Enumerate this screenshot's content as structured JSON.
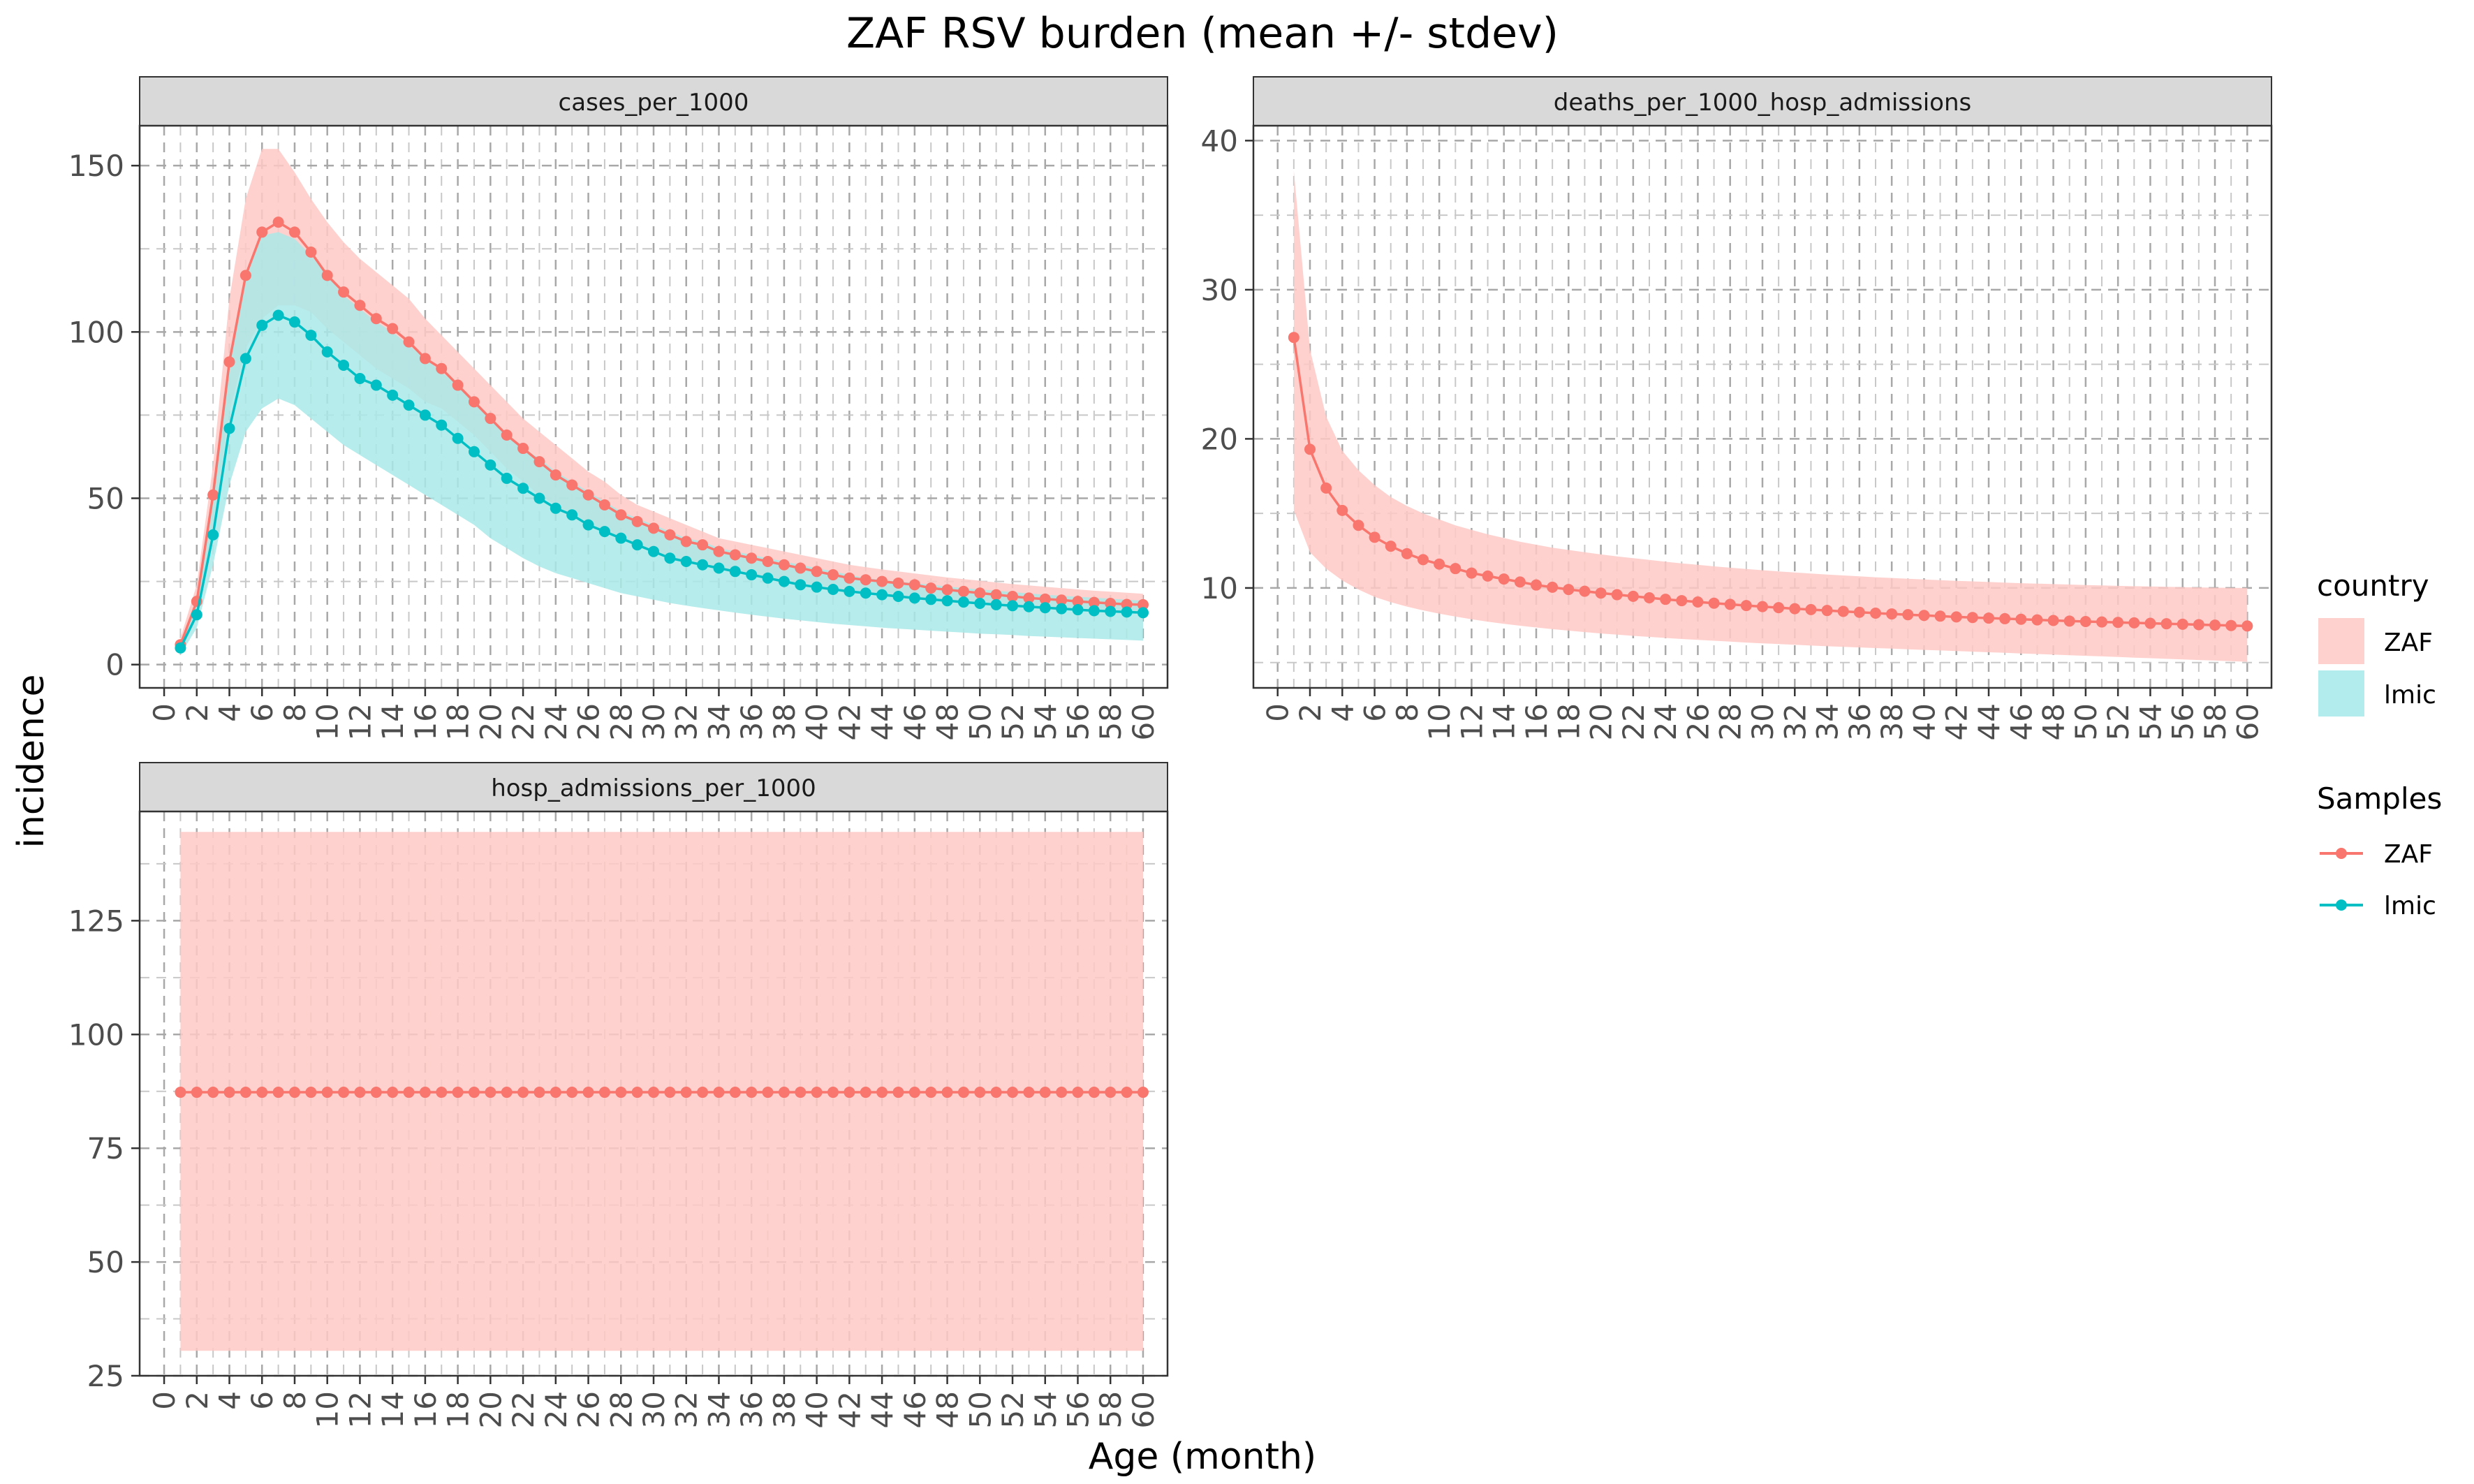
{
  "title": "ZAF RSV burden (mean +/- stdev)",
  "xlabel": "Age (month)",
  "ylabel": "incidence",
  "legend": {
    "fill_title": "country",
    "line_title": "Samples",
    "items": [
      {
        "label": "ZAF",
        "color": "#F8766D",
        "fill": "#FFD1CE"
      },
      {
        "label": "lmic",
        "color": "#00BFC4",
        "fill": "#B3ECEC"
      }
    ]
  },
  "colors": {
    "zaf": "#F8766D",
    "lmic": "#00BFC4",
    "zaf_band": "#FFC9C5",
    "lmic_band": "#A9E9E8",
    "strip": "#D9D9D9"
  },
  "chart_data": [
    {
      "type": "line",
      "panel": "cases_per_1000",
      "x_ticks": [
        0,
        2,
        4,
        6,
        8,
        10,
        12,
        14,
        16,
        18,
        20,
        22,
        24,
        26,
        28,
        30,
        32,
        34,
        36,
        38,
        40,
        42,
        44,
        46,
        48,
        50,
        52,
        54,
        56,
        58,
        60
      ],
      "xlim": [
        -1.5,
        61.5
      ],
      "ylim": [
        -7,
        162
      ],
      "y_ticks": [
        0,
        50,
        100,
        150
      ],
      "grid": true,
      "x": [
        1,
        2,
        3,
        4,
        5,
        6,
        7,
        8,
        9,
        10,
        11,
        12,
        13,
        14,
        15,
        16,
        17,
        18,
        19,
        20,
        21,
        22,
        23,
        24,
        25,
        26,
        27,
        28,
        29,
        30,
        31,
        32,
        33,
        34,
        35,
        36,
        37,
        38,
        39,
        40,
        41,
        42,
        43,
        44,
        45,
        46,
        47,
        48,
        49,
        50,
        51,
        52,
        53,
        54,
        55,
        56,
        57,
        58,
        59,
        60
      ],
      "series": [
        {
          "name": "ZAF",
          "values": [
            6,
            19,
            51,
            91,
            117,
            130,
            133,
            130,
            124,
            117,
            112,
            108,
            104,
            101,
            97,
            92,
            89,
            84,
            79,
            74,
            69,
            65,
            61,
            57,
            54,
            51,
            48,
            45,
            43,
            41,
            39,
            37,
            36,
            34,
            33,
            32,
            31,
            30,
            29,
            28,
            27,
            26,
            25.5,
            25,
            24.5,
            24,
            23,
            22.5,
            22,
            21.5,
            21,
            20.5,
            20,
            19.7,
            19.4,
            19,
            18.7,
            18.4,
            18.1,
            18
          ],
          "upper": [
            8,
            24,
            60,
            110,
            140,
            155,
            155,
            148,
            140,
            133,
            127,
            122,
            118,
            114,
            110,
            104,
            99,
            94,
            89,
            84,
            79,
            74,
            70,
            66,
            62,
            58,
            55,
            51,
            48,
            46,
            44,
            42,
            40,
            38,
            37,
            36,
            35,
            34,
            33,
            32,
            31,
            30,
            29.3,
            28.6,
            28,
            27.4,
            26.8,
            26.2,
            25.7,
            25.2,
            24.7,
            24.2,
            23.8,
            23.4,
            23,
            22.6,
            22.2,
            21.9,
            21.6,
            21.3
          ],
          "lower": [
            4,
            14,
            42,
            76,
            95,
            104,
            108,
            108,
            106,
            101,
            97,
            93,
            89,
            86,
            83,
            79,
            77,
            73,
            69,
            64,
            59,
            55,
            51,
            48,
            45,
            43,
            40,
            38,
            36,
            34,
            32,
            31,
            30,
            29,
            28,
            27,
            26,
            25,
            24.5,
            24,
            23,
            22.5,
            22,
            21.4,
            20.9,
            20.4,
            19.9,
            19.5,
            19,
            18.6,
            18.2,
            17.8,
            17.4,
            17.1,
            16.8,
            16.5,
            16.2,
            15.9,
            15.6,
            15.3
          ]
        },
        {
          "name": "lmic",
          "values": [
            5,
            15,
            39,
            71,
            92,
            102,
            105,
            103,
            99,
            94,
            90,
            86,
            84,
            81,
            78,
            75,
            72,
            68,
            64,
            60,
            56,
            53,
            50,
            47,
            45,
            42,
            40,
            38,
            36,
            34,
            32,
            31,
            30,
            29,
            28,
            27,
            26,
            25,
            24,
            23.3,
            22.6,
            22,
            21.5,
            21,
            20.5,
            20,
            19.6,
            19.2,
            18.8,
            18.4,
            18,
            17.7,
            17.4,
            17.1,
            16.8,
            16.5,
            16.2,
            16,
            15.8,
            15.6
          ],
          "upper": [
            7,
            19,
            49,
            90,
            116,
            129,
            130,
            128,
            123,
            117,
            111,
            107,
            103,
            100,
            96,
            92,
            88,
            84,
            79,
            74,
            69,
            65,
            62,
            58,
            55,
            52,
            49,
            46,
            44,
            42,
            40,
            38,
            37,
            35,
            34,
            33,
            32,
            31,
            30,
            29,
            28,
            27,
            26,
            25.5,
            25,
            24.5,
            24,
            23.5,
            23,
            22.6,
            22.2,
            21.8,
            21.4,
            21,
            20.7,
            20.4,
            20.1,
            19.8,
            19.5,
            19.2
          ],
          "lower": [
            3,
            11,
            30,
            54,
            70,
            77,
            80,
            78,
            74,
            70,
            66,
            63,
            60,
            57,
            54,
            51,
            48,
            45,
            42,
            38,
            35,
            32,
            29.5,
            27.5,
            26,
            24.5,
            23,
            21.5,
            20.5,
            19.5,
            18.5,
            17.7,
            17,
            16.3,
            15.6,
            15,
            14.4,
            13.8,
            13.3,
            12.8,
            12.3,
            11.9,
            11.5,
            11.1,
            10.8,
            10.5,
            10.2,
            9.9,
            9.6,
            9.3,
            9.1,
            8.9,
            8.6,
            8.4,
            8.2,
            8,
            7.8,
            7.6,
            7.4,
            7.2
          ]
        }
      ]
    },
    {
      "type": "line",
      "panel": "deaths_per_1000_hosp_admissions",
      "x_ticks": [
        0,
        2,
        4,
        6,
        8,
        10,
        12,
        14,
        16,
        18,
        20,
        22,
        24,
        26,
        28,
        30,
        32,
        34,
        36,
        38,
        40,
        42,
        44,
        46,
        48,
        50,
        52,
        54,
        56,
        58,
        60
      ],
      "xlim": [
        -1.5,
        61.5
      ],
      "ylim": [
        3.3,
        41
      ],
      "y_ticks": [
        10,
        20,
        30,
        40
      ],
      "grid": true,
      "x": [
        1,
        2,
        3,
        4,
        5,
        6,
        7,
        8,
        9,
        10,
        11,
        12,
        13,
        14,
        15,
        16,
        17,
        18,
        19,
        20,
        21,
        22,
        23,
        24,
        25,
        26,
        27,
        28,
        29,
        30,
        31,
        32,
        33,
        34,
        35,
        36,
        37,
        38,
        39,
        40,
        41,
        42,
        43,
        44,
        45,
        46,
        47,
        48,
        49,
        50,
        51,
        52,
        53,
        54,
        55,
        56,
        57,
        58,
        59,
        60
      ],
      "series": [
        {
          "name": "ZAF",
          "values": [
            26.8,
            19.3,
            16.7,
            15.2,
            14.2,
            13.4,
            12.8,
            12.3,
            11.9,
            11.6,
            11.3,
            11,
            10.8,
            10.6,
            10.4,
            10.2,
            10.05,
            9.9,
            9.78,
            9.66,
            9.55,
            9.44,
            9.34,
            9.24,
            9.15,
            9.06,
            8.98,
            8.9,
            8.82,
            8.75,
            8.68,
            8.61,
            8.55,
            8.49,
            8.43,
            8.37,
            8.31,
            8.26,
            8.21,
            8.16,
            8.11,
            8.06,
            8.02,
            7.98,
            7.94,
            7.9,
            7.86,
            7.82,
            7.78,
            7.75,
            7.72,
            7.69,
            7.66,
            7.63,
            7.6,
            7.57,
            7.54,
            7.51,
            7.48,
            7.45
          ],
          "upper": [
            38,
            26,
            21.5,
            19.2,
            17.9,
            16.9,
            16.1,
            15.5,
            15,
            14.6,
            14.2,
            13.9,
            13.6,
            13.35,
            13.1,
            12.9,
            12.7,
            12.55,
            12.4,
            12.25,
            12.12,
            12,
            11.88,
            11.76,
            11.65,
            11.55,
            11.45,
            11.36,
            11.27,
            11.19,
            11.11,
            11.04,
            10.97,
            10.9,
            10.84,
            10.78,
            10.72,
            10.67,
            10.62,
            10.57,
            10.52,
            10.48,
            10.44,
            10.4,
            10.36,
            10.32,
            10.29,
            10.26,
            10.23,
            10.2,
            10.17,
            10.14,
            10.12,
            10.1,
            10.08,
            10.06,
            10.04,
            10.02,
            10.01,
            10
          ],
          "lower": [
            15.2,
            12.4,
            11.3,
            10.5,
            9.9,
            9.4,
            9.05,
            8.75,
            8.5,
            8.28,
            8.08,
            7.9,
            7.74,
            7.6,
            7.47,
            7.35,
            7.24,
            7.14,
            7.04,
            6.95,
            6.87,
            6.79,
            6.72,
            6.65,
            6.58,
            6.52,
            6.46,
            6.4,
            6.34,
            6.29,
            6.24,
            6.19,
            6.14,
            6.09,
            6.05,
            6.01,
            5.97,
            5.93,
            5.89,
            5.85,
            5.81,
            5.77,
            5.73,
            5.69,
            5.65,
            5.61,
            5.57,
            5.53,
            5.49,
            5.45,
            5.41,
            5.37,
            5.33,
            5.29,
            5.25,
            5.21,
            5.17,
            5.13,
            5.09,
            5.05
          ]
        }
      ]
    },
    {
      "type": "line",
      "panel": "hosp_admissions_per_1000",
      "x_ticks": [
        0,
        2,
        4,
        6,
        8,
        10,
        12,
        14,
        16,
        18,
        20,
        22,
        24,
        26,
        28,
        30,
        32,
        34,
        36,
        38,
        40,
        42,
        44,
        46,
        48,
        50,
        52,
        54,
        56,
        58,
        60
      ],
      "xlim": [
        -1.5,
        61.5
      ],
      "ylim": [
        25,
        149
      ],
      "y_ticks": [
        25,
        50,
        75,
        100,
        125
      ],
      "grid": true,
      "x": [
        1,
        2,
        3,
        4,
        5,
        6,
        7,
        8,
        9,
        10,
        11,
        12,
        13,
        14,
        15,
        16,
        17,
        18,
        19,
        20,
        21,
        22,
        23,
        24,
        25,
        26,
        27,
        28,
        29,
        30,
        31,
        32,
        33,
        34,
        35,
        36,
        37,
        38,
        39,
        40,
        41,
        42,
        43,
        44,
        45,
        46,
        47,
        48,
        49,
        50,
        51,
        52,
        53,
        54,
        55,
        56,
        57,
        58,
        59,
        60
      ],
      "series": [
        {
          "name": "ZAF",
          "values": [
            87.3,
            87.3,
            87.3,
            87.3,
            87.3,
            87.3,
            87.3,
            87.3,
            87.3,
            87.3,
            87.3,
            87.3,
            87.3,
            87.3,
            87.3,
            87.3,
            87.3,
            87.3,
            87.3,
            87.3,
            87.3,
            87.3,
            87.3,
            87.3,
            87.3,
            87.3,
            87.3,
            87.3,
            87.3,
            87.3,
            87.3,
            87.3,
            87.3,
            87.3,
            87.3,
            87.3,
            87.3,
            87.3,
            87.3,
            87.3,
            87.3,
            87.3,
            87.3,
            87.3,
            87.3,
            87.3,
            87.3,
            87.3,
            87.3,
            87.3,
            87.3,
            87.3,
            87.3,
            87.3,
            87.3,
            87.3,
            87.3,
            87.3,
            87.3,
            87.3
          ],
          "upper": [
            144.5,
            144.5,
            144.5,
            144.5,
            144.5,
            144.5,
            144.5,
            144.5,
            144.5,
            144.5,
            144.5,
            144.5,
            144.5,
            144.5,
            144.5,
            144.5,
            144.5,
            144.5,
            144.5,
            144.5,
            144.5,
            144.5,
            144.5,
            144.5,
            144.5,
            144.5,
            144.5,
            144.5,
            144.5,
            144.5,
            144.5,
            144.5,
            144.5,
            144.5,
            144.5,
            144.5,
            144.5,
            144.5,
            144.5,
            144.5,
            144.5,
            144.5,
            144.5,
            144.5,
            144.5,
            144.5,
            144.5,
            144.5,
            144.5,
            144.5,
            144.5,
            144.5,
            144.5,
            144.5,
            144.5,
            144.5,
            144.5,
            144.5,
            144.5,
            144.5
          ],
          "lower": [
            30.5,
            30.5,
            30.5,
            30.5,
            30.5,
            30.5,
            30.5,
            30.5,
            30.5,
            30.5,
            30.5,
            30.5,
            30.5,
            30.5,
            30.5,
            30.5,
            30.5,
            30.5,
            30.5,
            30.5,
            30.5,
            30.5,
            30.5,
            30.5,
            30.5,
            30.5,
            30.5,
            30.5,
            30.5,
            30.5,
            30.5,
            30.5,
            30.5,
            30.5,
            30.5,
            30.5,
            30.5,
            30.5,
            30.5,
            30.5,
            30.5,
            30.5,
            30.5,
            30.5,
            30.5,
            30.5,
            30.5,
            30.5,
            30.5,
            30.5,
            30.5,
            30.5,
            30.5,
            30.5,
            30.5,
            30.5,
            30.5,
            30.5,
            30.5,
            30.5
          ]
        }
      ]
    }
  ]
}
